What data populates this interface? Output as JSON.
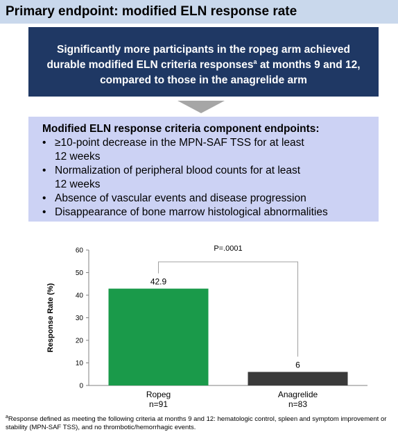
{
  "header": {
    "title": "Primary endpoint: modified ELN response rate"
  },
  "summary": {
    "line1": "Significantly more participants in the ropeg arm achieved",
    "line2_pre": "durable modified ELN criteria responses",
    "line2_sup": "a",
    "line2_post": " at months 9 and 12,",
    "line3": "compared to those in the anagrelide arm"
  },
  "criteria": {
    "title": "Modified ELN response criteria component endpoints:",
    "bullet": "•",
    "items": [
      {
        "line1": "≥10-point decrease in the MPN-SAF TSS for at least",
        "line2": "12 weeks"
      },
      {
        "line1": "Normalization of peripheral blood counts for at least",
        "line2": "12 weeks"
      },
      {
        "line1": "Absence of vascular events and disease progression",
        "line2": ""
      },
      {
        "line1": "Disappearance of bone marrow histological abnormalities",
        "line2": ""
      }
    ]
  },
  "chart_data": {
    "type": "bar",
    "categories": [
      "Ropeg",
      "Anagrelide"
    ],
    "category_sublabels": [
      "n=91",
      "n=83"
    ],
    "values": [
      42.9,
      6
    ],
    "data_labels": [
      "42.9",
      "6"
    ],
    "colors": [
      "#1a9a4a",
      "#3a3a3a"
    ],
    "ylabel": "Response Rate (%)",
    "ylim": [
      0,
      60
    ],
    "yticks": [
      0,
      10,
      20,
      30,
      40,
      50,
      60
    ],
    "annotation": "P=.0001",
    "grid": false
  },
  "footnote": {
    "sup": "a",
    "text": "Response defined as meeting the following criteria at months 9 and 12: hematologic control, spleen and symptom improvement or stability (MPN-SAF TSS), and no thrombotic/hemorrhagic events."
  }
}
